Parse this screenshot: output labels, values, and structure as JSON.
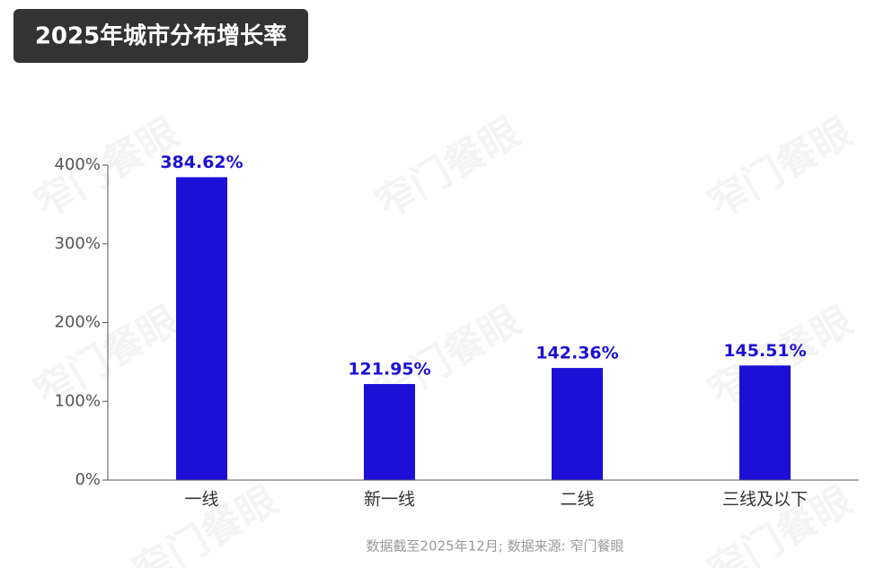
{
  "chart_data": {
    "type": "bar",
    "title": "2025年城市分布增长率",
    "categories": [
      "一线",
      "新一线",
      "二线",
      "三线及以下"
    ],
    "values": [
      384.62,
      121.95,
      142.36,
      145.51
    ],
    "value_labels": [
      "384.62%",
      "121.95%",
      "142.36%",
      "145.51%"
    ],
    "color": "#1c10d6",
    "ylim": [
      0,
      400
    ],
    "yticks": [
      {
        "value": 0,
        "label": "0%"
      },
      {
        "value": 100,
        "label": "100%"
      },
      {
        "value": 200,
        "label": "200%"
      },
      {
        "value": 300,
        "label": "300%"
      },
      {
        "value": 400,
        "label": "400%"
      }
    ],
    "source": "数据截至2025年12月; 数据来源: 窄门餐眼",
    "watermark": "窄门餐眼"
  }
}
